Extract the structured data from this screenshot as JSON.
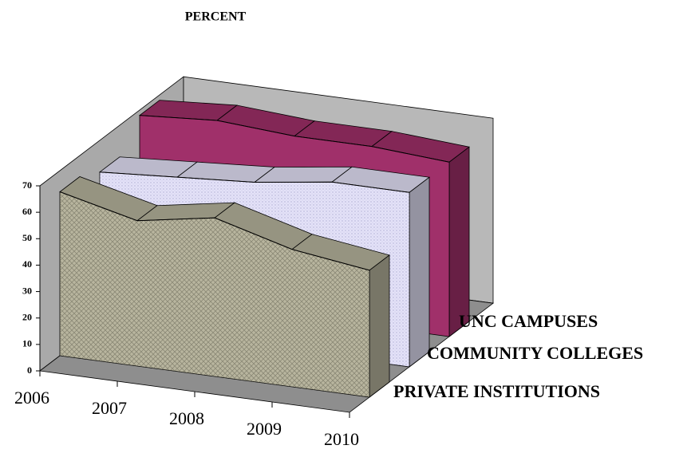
{
  "chart_data": {
    "type": "area3d",
    "title": "PERCENT",
    "categories": [
      "2006",
      "2007",
      "2008",
      "2009",
      "2010"
    ],
    "series": [
      {
        "name": "PRIVATE INSTITUTIONS",
        "color": "#b8b59e",
        "values": [
          62,
          55,
          60,
          52,
          48
        ]
      },
      {
        "name": "COMMUNITY COLLEGES",
        "color": "#e4e2f8",
        "values": [
          58,
          60,
          62,
          66,
          66
        ]
      },
      {
        "name": "UNC CAMPUSES",
        "color": "#a0306a",
        "values": [
          68,
          70,
          68,
          68,
          66
        ]
      }
    ],
    "ylim": [
      0,
      70
    ],
    "yticks": [
      0,
      10,
      20,
      30,
      40,
      50,
      60,
      70
    ]
  }
}
